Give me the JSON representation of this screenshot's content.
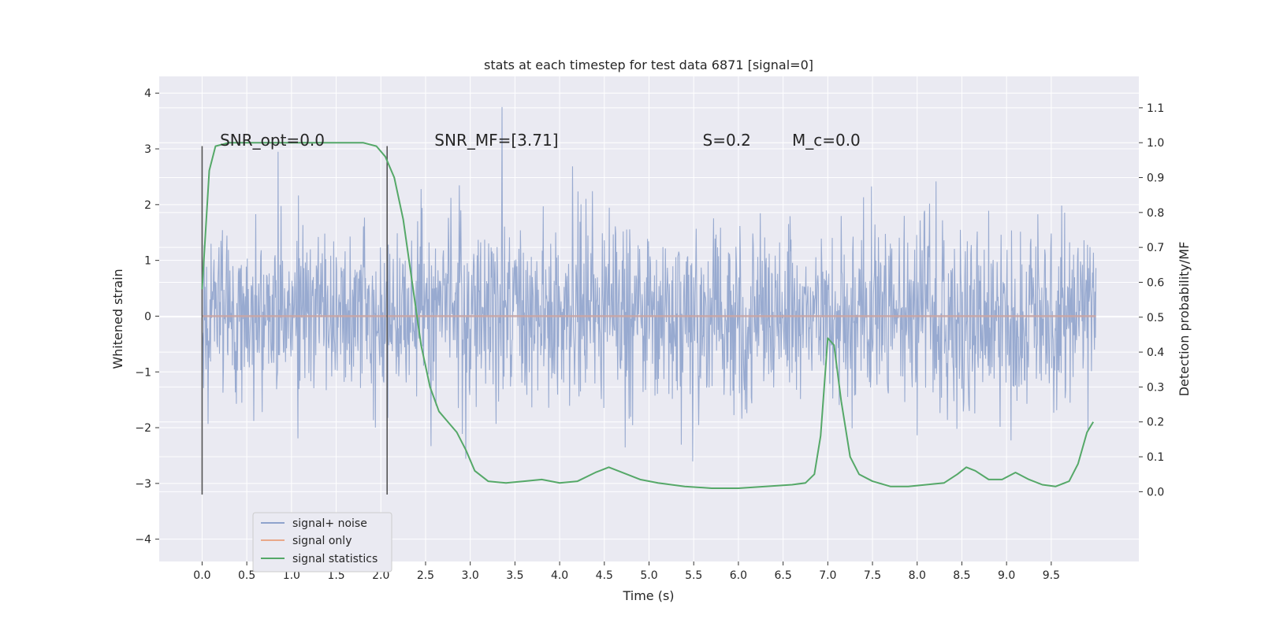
{
  "chart_data": {
    "type": "line",
    "title": "stats at each timestep for test data 6871 [signal=0]",
    "xlabel": "Time (s)",
    "ylabel": "Whitened strain",
    "y2label": "Detection probability/MF",
    "xlim": [
      -0.48,
      10.48
    ],
    "ylim": [
      -4.4,
      4.3
    ],
    "y2lim": [
      -0.2,
      1.19
    ],
    "x_ticks": [
      "0.0",
      "0.5",
      "1.0",
      "1.5",
      "2.0",
      "2.5",
      "3.0",
      "3.5",
      "4.0",
      "4.5",
      "5.0",
      "5.5",
      "6.0",
      "6.5",
      "7.0",
      "7.5",
      "8.0",
      "8.5",
      "9.0",
      "9.5"
    ],
    "y_ticks": [
      "4",
      "3",
      "2",
      "1",
      "0",
      "−1",
      "−2",
      "−3",
      "−4"
    ],
    "y2_ticks": [
      "1.1",
      "1.0",
      "0.9",
      "0.8",
      "0.7",
      "0.6",
      "0.5",
      "0.4",
      "0.3",
      "0.2",
      "0.1",
      "0.0"
    ],
    "grid": true,
    "legend_position": "lower-left",
    "colors": {
      "noise": "#8fa3cc",
      "signal": "#dd8452",
      "statistics": "#55a868",
      "background": "#eaeaf2",
      "grid": "#ffffff",
      "markers": "#555555"
    },
    "annotations": [
      {
        "text": "SNR_opt=0.0",
        "x": 0.2
      },
      {
        "text": "SNR_MF=[3.71]",
        "x": 2.6
      },
      {
        "text": "S=0.2",
        "x": 5.6
      },
      {
        "text": "M_c=0.0",
        "x": 6.6
      }
    ],
    "vertical_markers": [
      0.0,
      2.07
    ],
    "series": [
      {
        "name": "signal+ noise",
        "axis": "left",
        "description": "whitened noise trace sampled across 0-10 s, amplitude mostly within ±2.5"
      },
      {
        "name": "signal only",
        "axis": "left",
        "x": [
          0.0,
          10.0
        ],
        "y": [
          0.0,
          0.0
        ]
      },
      {
        "name": "signal statistics",
        "axis": "right",
        "x": [
          0.0,
          0.08,
          0.15,
          0.3,
          0.5,
          0.8,
          1.0,
          1.3,
          1.6,
          1.8,
          1.95,
          2.05,
          2.15,
          2.25,
          2.35,
          2.45,
          2.55,
          2.65,
          2.75,
          2.85,
          2.95,
          3.05,
          3.2,
          3.4,
          3.6,
          3.8,
          4.0,
          4.2,
          4.4,
          4.55,
          4.7,
          4.9,
          5.1,
          5.4,
          5.7,
          6.0,
          6.3,
          6.6,
          6.75,
          6.85,
          6.92,
          7.0,
          7.07,
          7.15,
          7.25,
          7.35,
          7.5,
          7.7,
          7.9,
          8.1,
          8.3,
          8.45,
          8.55,
          8.65,
          8.8,
          8.95,
          9.1,
          9.25,
          9.4,
          9.55,
          9.7,
          9.8,
          9.9,
          9.97
        ],
        "y": [
          0.58,
          0.92,
          0.99,
          1.0,
          1.0,
          1.0,
          1.0,
          1.0,
          1.0,
          1.0,
          0.99,
          0.96,
          0.9,
          0.78,
          0.6,
          0.42,
          0.3,
          0.23,
          0.2,
          0.17,
          0.12,
          0.06,
          0.03,
          0.025,
          0.03,
          0.035,
          0.025,
          0.03,
          0.055,
          0.07,
          0.055,
          0.035,
          0.025,
          0.015,
          0.01,
          0.01,
          0.015,
          0.02,
          0.025,
          0.05,
          0.16,
          0.44,
          0.42,
          0.26,
          0.1,
          0.05,
          0.03,
          0.015,
          0.015,
          0.02,
          0.025,
          0.05,
          0.07,
          0.06,
          0.035,
          0.035,
          0.055,
          0.035,
          0.02,
          0.015,
          0.03,
          0.08,
          0.17,
          0.2
        ]
      }
    ],
    "legend": [
      "signal+ noise",
      "signal only",
      "signal statistics"
    ]
  }
}
